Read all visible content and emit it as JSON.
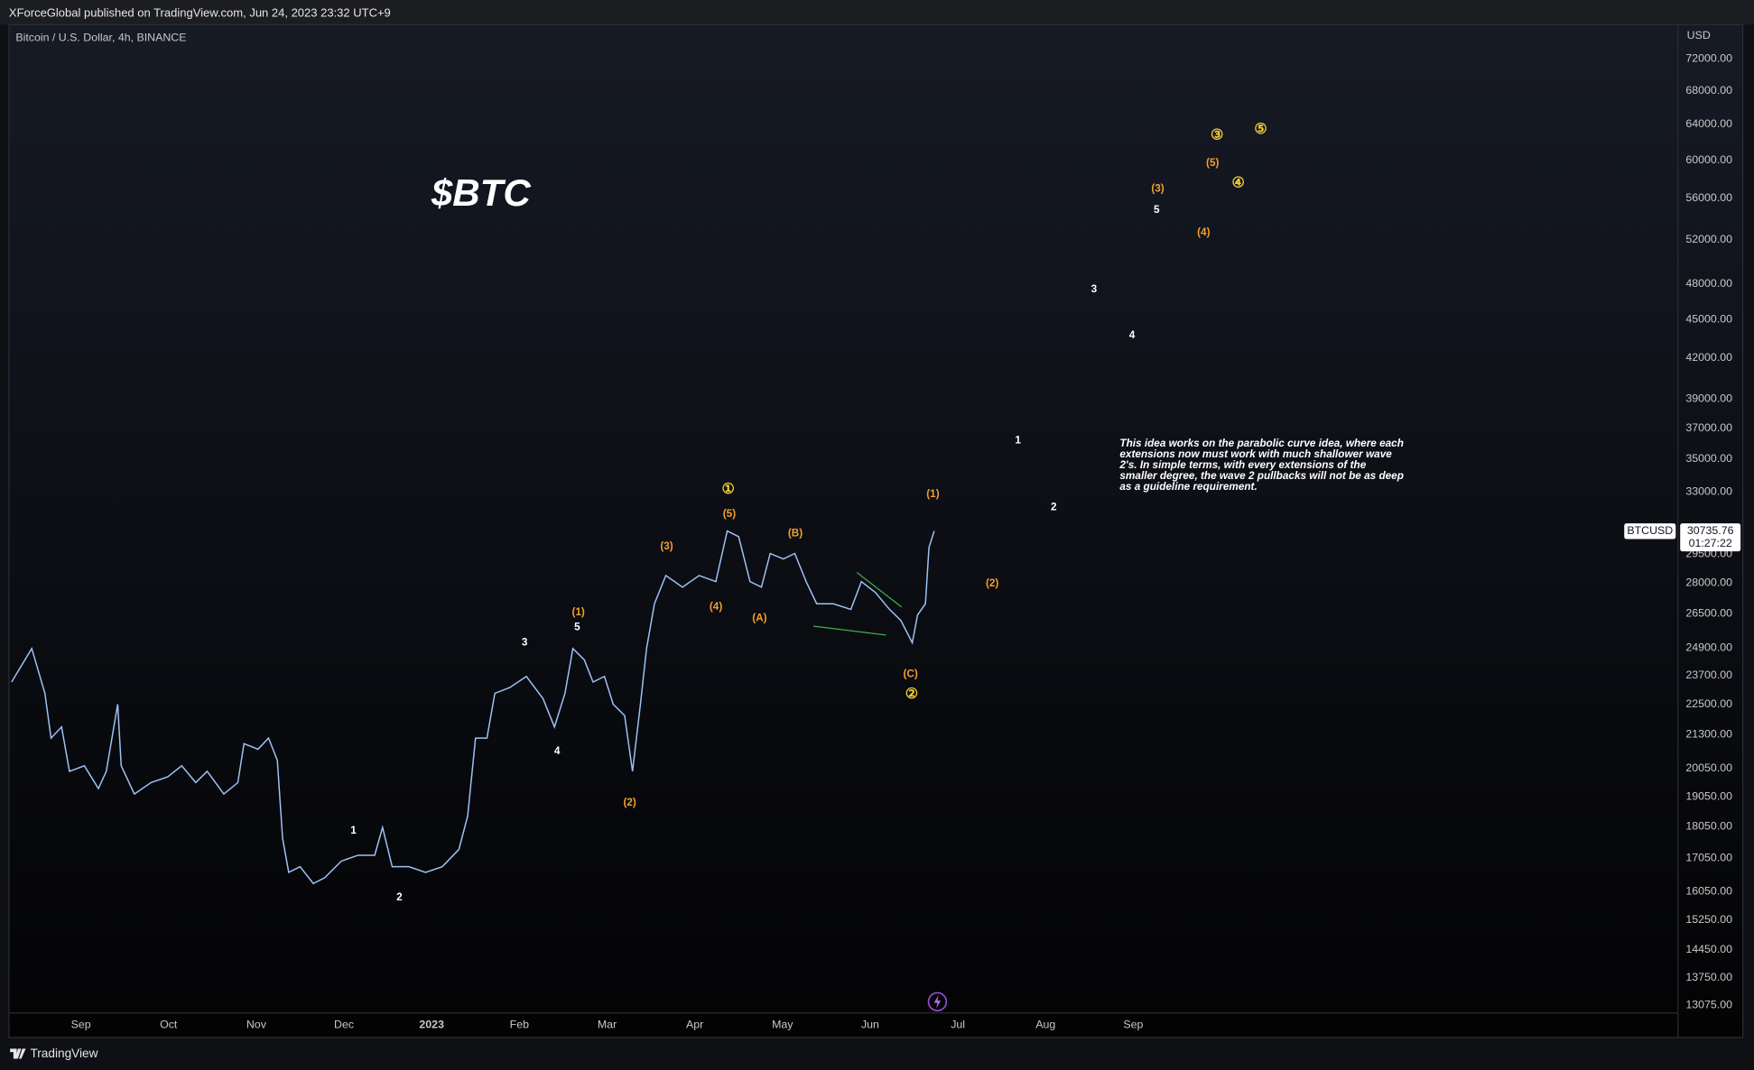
{
  "header": {
    "published": "XForceGlobal published on TradingView.com, Jun 24, 2023 23:32 UTC+9"
  },
  "chart_data": {
    "type": "line",
    "symbol_info": "Bitcoin / U.S. Dollar, 4h, BINANCE",
    "title": "$BTC",
    "currency": "USD",
    "log_scale": true,
    "grid": false,
    "ylim": [
      12900,
      76600
    ],
    "yticks": [
      {
        "value": 72000,
        "label": "72000.00"
      },
      {
        "value": 68000,
        "label": "68000.00"
      },
      {
        "value": 64000,
        "label": "64000.00"
      },
      {
        "value": 60000,
        "label": "60000.00"
      },
      {
        "value": 56000,
        "label": "56000.00"
      },
      {
        "value": 52000,
        "label": "52000.00"
      },
      {
        "value": 48000,
        "label": "48000.00"
      },
      {
        "value": 45000,
        "label": "45000.00"
      },
      {
        "value": 42000,
        "label": "42000.00"
      },
      {
        "value": 39000,
        "label": "39000.00"
      },
      {
        "value": 37000,
        "label": "37000.00"
      },
      {
        "value": 35000,
        "label": "35000.00"
      },
      {
        "value": 33000,
        "label": "33000.00"
      },
      {
        "value": 29500,
        "label": "29500.00"
      },
      {
        "value": 28000,
        "label": "28000.00"
      },
      {
        "value": 26500,
        "label": "26500.00"
      },
      {
        "value": 24900,
        "label": "24900.00"
      },
      {
        "value": 23700,
        "label": "23700.00"
      },
      {
        "value": 22500,
        "label": "22500.00"
      },
      {
        "value": 21300,
        "label": "21300.00"
      },
      {
        "value": 20050,
        "label": "20050.00"
      },
      {
        "value": 19050,
        "label": "19050.00"
      },
      {
        "value": 18050,
        "label": "18050.00"
      },
      {
        "value": 17050,
        "label": "17050.00"
      },
      {
        "value": 16050,
        "label": "16050.00"
      },
      {
        "value": 15250,
        "label": "15250.00"
      },
      {
        "value": 14450,
        "label": "14450.00"
      },
      {
        "value": 13750,
        "label": "13750.00"
      },
      {
        "value": 13075,
        "label": "13075.00"
      }
    ],
    "xlim": [
      -0.82,
      18.21
    ],
    "xticks": [
      {
        "value": 0,
        "label": "Sep"
      },
      {
        "value": 1,
        "label": "Oct"
      },
      {
        "value": 2,
        "label": "Nov"
      },
      {
        "value": 3,
        "label": "Dec"
      },
      {
        "value": 4,
        "label": "2023"
      },
      {
        "value": 5,
        "label": "Feb"
      },
      {
        "value": 6,
        "label": "Mar"
      },
      {
        "value": 7,
        "label": "Apr"
      },
      {
        "value": 8,
        "label": "May"
      },
      {
        "value": 9,
        "label": "Jun"
      },
      {
        "value": 10,
        "label": "Jul"
      },
      {
        "value": 11,
        "label": "Aug"
      },
      {
        "value": 12,
        "label": "Sep"
      }
    ],
    "x": [
      -0.79,
      -0.56,
      -0.41,
      -0.34,
      -0.22,
      -0.13,
      0.04,
      0.2,
      0.29,
      0.42,
      0.46,
      0.61,
      0.8,
      0.99,
      1.15,
      1.31,
      1.44,
      1.63,
      1.79,
      1.86,
      2.02,
      2.14,
      2.24,
      2.3,
      2.37,
      2.5,
      2.65,
      2.78,
      2.97,
      3.16,
      3.35,
      3.44,
      3.55,
      3.74,
      3.93,
      4.12,
      4.31,
      4.41,
      4.5,
      4.63,
      4.72,
      4.89,
      5.08,
      5.27,
      5.4,
      5.52,
      5.61,
      5.74,
      5.84,
      5.97,
      6.07,
      6.2,
      6.29,
      6.38,
      6.45,
      6.54,
      6.67,
      6.86,
      7.05,
      7.24,
      7.37,
      7.5,
      7.63,
      7.76,
      7.86,
      8.01,
      8.14,
      8.27,
      8.39,
      8.58,
      8.78,
      8.9,
      9.06,
      9.22,
      9.35,
      9.48,
      9.54,
      9.63,
      9.67,
      9.73
    ],
    "series": [
      {
        "name": "BTCUSD",
        "color": "#9ec2f5",
        "values": [
          23420,
          24880,
          22950,
          21170,
          21600,
          19940,
          20140,
          19330,
          19940,
          22500,
          20140,
          19140,
          19540,
          19740,
          20140,
          19540,
          19940,
          19140,
          19540,
          20960,
          20750,
          21170,
          20340,
          17670,
          16620,
          16790,
          16290,
          16460,
          16960,
          17140,
          17140,
          18020,
          16790,
          16790,
          16620,
          16790,
          17320,
          18390,
          21170,
          21170,
          22950,
          23190,
          23660,
          22730,
          21600,
          22950,
          24880,
          24380,
          23420,
          23660,
          22500,
          22050,
          19940,
          22500,
          24880,
          26970,
          28380,
          27790,
          28380,
          28070,
          30750,
          30440,
          28070,
          27790,
          29530,
          29240,
          29530,
          28070,
          26970,
          26970,
          26700,
          28070,
          27520,
          26700,
          26170,
          25140,
          26430,
          26970,
          29840,
          30750
        ]
      }
    ],
    "last_price": 30735.76,
    "countdown": "01:27:22",
    "wave_labels": [
      {
        "text": "1",
        "color": "#ffffff"
      },
      {
        "text": "2",
        "color": "#ffffff"
      },
      {
        "text": "3",
        "color": "#ffffff"
      },
      {
        "text": "4",
        "color": "#ffffff"
      },
      {
        "text": "5",
        "color": "#ffffff"
      },
      {
        "text": "1",
        "color": "#ffffff"
      },
      {
        "text": "2",
        "color": "#ffffff"
      },
      {
        "text": "3",
        "color": "#ffffff"
      },
      {
        "text": "4",
        "color": "#ffffff"
      },
      {
        "text": "5",
        "color": "#ffffff"
      },
      {
        "text": "(1)",
        "color": "#f0a030"
      },
      {
        "text": "(2)",
        "color": "#f0a030"
      },
      {
        "text": "(3)",
        "color": "#f0a030"
      },
      {
        "text": "(4)",
        "color": "#f0a030"
      },
      {
        "text": "(5)",
        "color": "#f0a030"
      },
      {
        "text": "(A)",
        "color": "#f0a030"
      },
      {
        "text": "(B)",
        "color": "#f0a030"
      },
      {
        "text": "(C)",
        "color": "#f0a030"
      },
      {
        "text": "(1)",
        "color": "#f0a030"
      },
      {
        "text": "(2)",
        "color": "#f0a030"
      },
      {
        "text": "(3)",
        "color": "#f0a030"
      },
      {
        "text": "(4)",
        "color": "#f0a030"
      },
      {
        "text": "(5)",
        "color": "#f0a030"
      },
      {
        "text": "①",
        "color": "#f5d033"
      },
      {
        "text": "②",
        "color": "#f5d033"
      },
      {
        "text": "③",
        "color": "#f5d033"
      },
      {
        "text": "④",
        "color": "#f5d033"
      },
      {
        "text": "⑤",
        "color": "#f5d033"
      }
    ],
    "note": [
      "This idea works on the parabolic curve idea, where each",
      "extensions now must work with much shallower wave",
      "2's. In simple terms, with every extensions of the",
      "smaller degree, the wave 2 pullbacks will not be as deep",
      "as a guideline requirement."
    ]
  },
  "footer": {
    "brand": "TradingView"
  }
}
